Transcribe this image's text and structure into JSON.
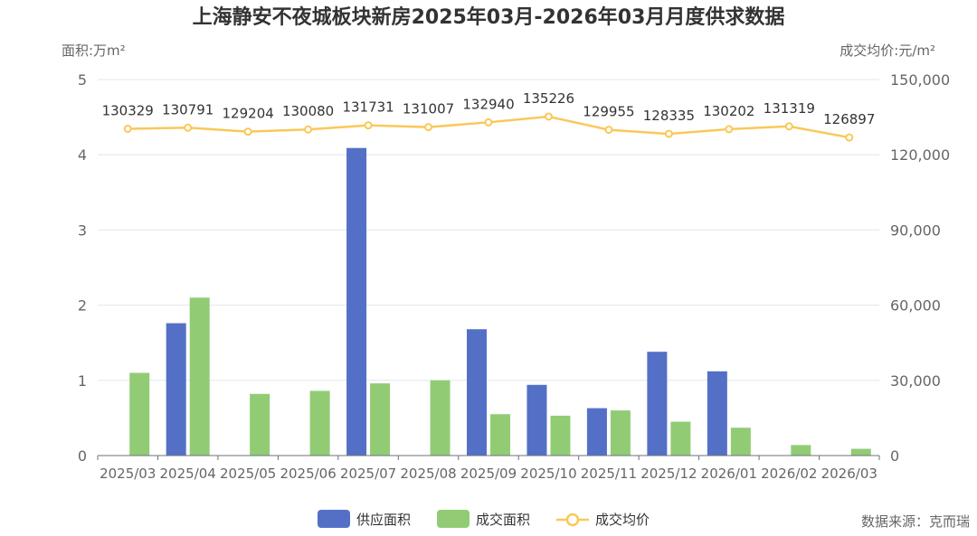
{
  "chart_data": {
    "type": "bar",
    "title": "上海静安不夜城板块新房2025年03月-2026年03月月度供求数据",
    "ylabel_left": "面积:万m²",
    "ylabel_right": "成交均价:元/m²",
    "categories": [
      "2025/03",
      "2025/04",
      "2025/05",
      "2025/06",
      "2025/07",
      "2025/08",
      "2025/09",
      "2025/10",
      "2025/11",
      "2025/12",
      "2026/01",
      "2026/02",
      "2026/03"
    ],
    "ylim_left": [
      0,
      5
    ],
    "yticks_left": [
      "0",
      "1",
      "2",
      "3",
      "4",
      "5"
    ],
    "ylim_right": [
      0,
      150000
    ],
    "yticks_right": [
      "0",
      "30,000",
      "60,000",
      "90,000",
      "120,000",
      "150,000"
    ],
    "series": [
      {
        "name": "供应面积",
        "type": "bar",
        "axis": "left",
        "color": "#5470c6",
        "values": [
          0,
          1.76,
          0,
          0,
          4.09,
          0,
          1.68,
          0.94,
          0.63,
          1.38,
          1.12,
          0,
          0
        ]
      },
      {
        "name": "成交面积",
        "type": "bar",
        "axis": "left",
        "color": "#91cc75",
        "values": [
          1.1,
          2.1,
          0.82,
          0.86,
          0.96,
          1.0,
          0.55,
          0.53,
          0.6,
          0.45,
          0.37,
          0.14,
          0.09
        ]
      },
      {
        "name": "成交均价",
        "type": "line",
        "axis": "right",
        "color": "#fac858",
        "values": [
          130329,
          130791,
          129204,
          130080,
          131731,
          131007,
          132940,
          135226,
          129955,
          128335,
          130202,
          131319,
          126897
        ],
        "labels": [
          "130329",
          "130791",
          "129204",
          "130080",
          "131731",
          "131007",
          "132940",
          "135226",
          "129955",
          "128335",
          "130202",
          "131319",
          "126897"
        ]
      }
    ],
    "grid": true,
    "legend_position": "bottom"
  },
  "source_text": "数据来源：克而瑞"
}
